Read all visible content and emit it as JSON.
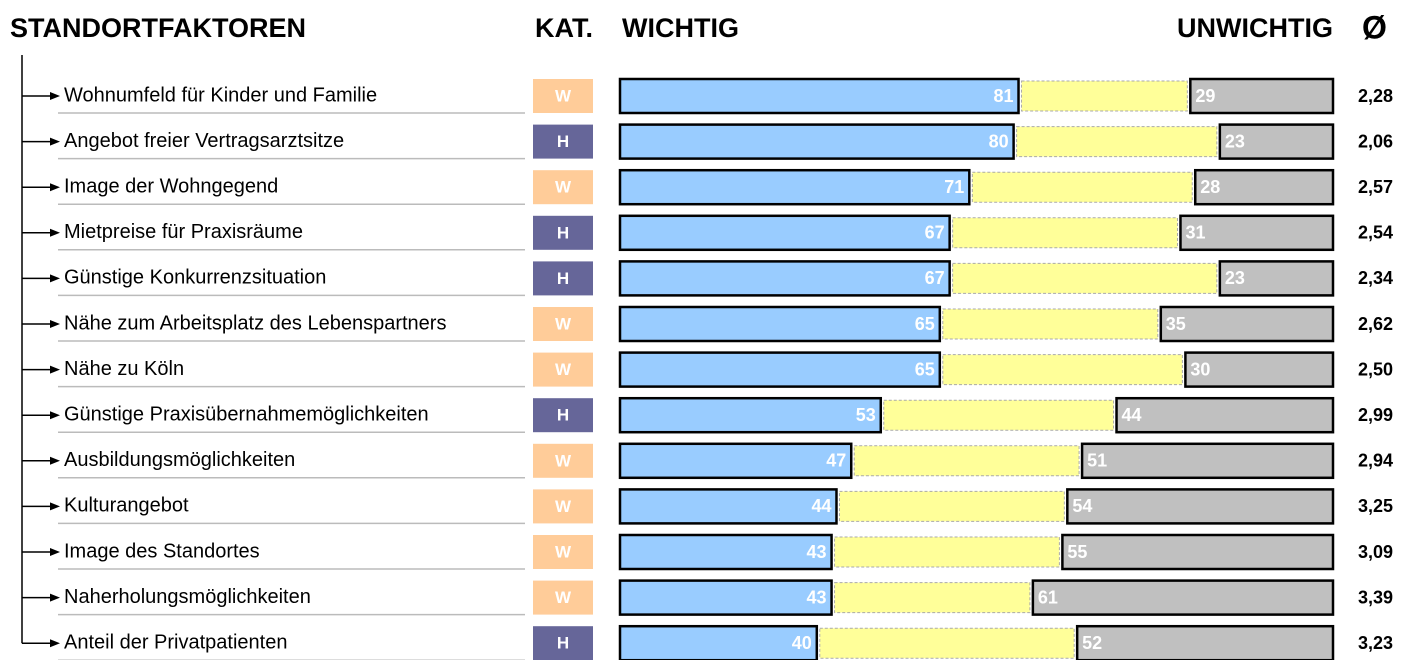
{
  "chart_data": {
    "type": "diverging_bar",
    "headers": {
      "factor": "STANDORTFAKTOREN",
      "category": "KAT.",
      "mean": "Ø"
    },
    "categories": [
      "Wohnumfeld für Kinder und Familie",
      "Angebot freier Vertragsarztsitze",
      "Image der Wohngegend",
      "Mietpreise für Praxisräume",
      "Günstige Konkurrenzsituation",
      "Nähe zum Arbeitsplatz des Lebenspartners",
      "Nähe zu Köln",
      "Günstige Praxisübernahmemöglichkeiten",
      "Ausbildungsmöglichkeiten",
      "Kulturangebot",
      "Image des Standortes",
      "Naherholungsmöglichkeiten",
      "Anteil der Privatpatienten"
    ],
    "kat": [
      "W",
      "H",
      "W",
      "H",
      "H",
      "W",
      "W",
      "H",
      "W",
      "W",
      "W",
      "W",
      "H"
    ],
    "kat_colors": {
      "W": "#ffcc99",
      "H": "#666699"
    },
    "series": [
      {
        "name": "WICHTIG",
        "color": "#99ccff",
        "values": [
          81,
          80,
          71,
          67,
          67,
          65,
          65,
          53,
          47,
          44,
          43,
          43,
          40
        ]
      },
      {
        "name": "UNWICHTIG",
        "color": "#c0c0c0",
        "values": [
          29,
          23,
          28,
          31,
          23,
          35,
          30,
          44,
          51,
          54,
          55,
          61,
          52
        ]
      }
    ],
    "neutral_color": "#ffff99",
    "mean": {
      "values": [
        2.28,
        2.06,
        2.57,
        2.54,
        2.34,
        2.62,
        2.5,
        2.99,
        2.94,
        3.25,
        3.09,
        3.39,
        3.23
      ],
      "value_labels": [
        "2,28",
        "2,06",
        "2,57",
        "2,54",
        "2,34",
        "2,62",
        "2,50",
        "2,99",
        "2,94",
        "3,25",
        "3,09",
        "3,39",
        "3,23"
      ]
    }
  }
}
